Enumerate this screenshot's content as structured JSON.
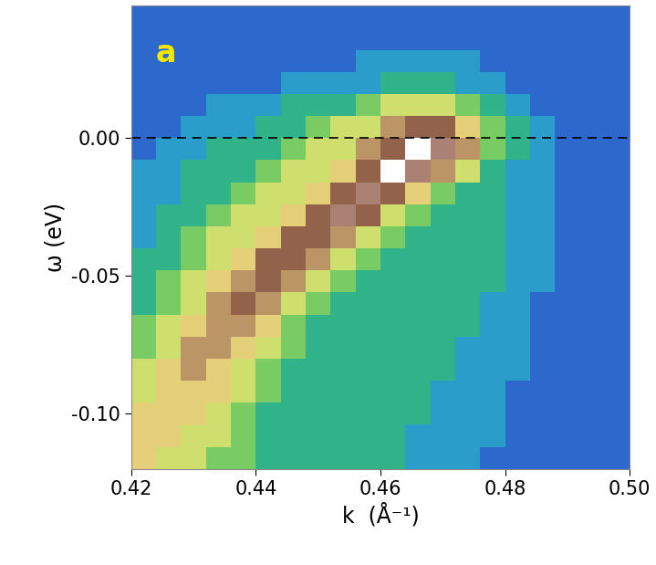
{
  "chart_data": {
    "type": "heatmap",
    "x_label": "k  (Å⁻¹)",
    "y_label": "ω (eV)",
    "annotations": [
      {
        "text": "a"
      }
    ],
    "hline": 0,
    "xlim": [
      0.42,
      0.5
    ],
    "ylim": [
      -0.12,
      0.048
    ],
    "xticks": [
      {
        "value": 0.42,
        "label": "0.42"
      },
      {
        "value": 0.44,
        "label": "0.44"
      },
      {
        "value": 0.46,
        "label": "0.46"
      },
      {
        "value": 0.48,
        "label": "0.48"
      },
      {
        "value": 0.5,
        "label": "0.50"
      }
    ],
    "yticks": [
      {
        "value": -0.1,
        "label": "-0.10"
      },
      {
        "value": -0.05,
        "label": "-0.05"
      },
      {
        "value": 0.0,
        "label": "0.00"
      }
    ],
    "x_edges": [
      0.42,
      0.424,
      0.428,
      0.432,
      0.436,
      0.44,
      0.444,
      0.448,
      0.452,
      0.456,
      0.46,
      0.464,
      0.468,
      0.472,
      0.476,
      0.48,
      0.484,
      0.488,
      0.492,
      0.496,
      0.5
    ],
    "y_edges": [
      -0.12,
      -0.112,
      -0.104,
      -0.096,
      -0.088,
      -0.08,
      -0.072,
      -0.064,
      -0.056,
      -0.048,
      -0.04,
      -0.032,
      -0.024,
      -0.016,
      -0.008,
      0.0,
      0.008,
      0.016,
      0.024,
      0.032,
      0.04,
      0.048
    ],
    "zlim": [
      0,
      10
    ],
    "cells": [
      [
        6,
        5,
        5,
        4,
        4,
        3,
        3,
        3,
        3,
        3,
        3,
        2,
        2,
        2,
        1,
        1,
        1,
        1,
        1,
        1
      ],
      [
        6,
        6,
        5,
        5,
        4,
        3,
        3,
        3,
        3,
        3,
        3,
        2,
        2,
        2,
        2,
        1,
        1,
        1,
        1,
        1
      ],
      [
        6,
        6,
        6,
        5,
        4,
        3,
        3,
        3,
        3,
        3,
        3,
        3,
        2,
        2,
        2,
        1,
        1,
        1,
        1,
        1
      ],
      [
        5,
        6,
        6,
        6,
        5,
        4,
        3,
        3,
        3,
        3,
        3,
        3,
        2,
        2,
        2,
        1,
        1,
        1,
        1,
        1
      ],
      [
        5,
        6,
        7,
        6,
        5,
        4,
        3,
        3,
        3,
        3,
        3,
        3,
        3,
        2,
        2,
        2,
        1,
        1,
        1,
        1
      ],
      [
        4,
        5,
        7,
        7,
        6,
        5,
        4,
        3,
        3,
        3,
        3,
        3,
        3,
        2,
        2,
        2,
        1,
        1,
        1,
        1
      ],
      [
        4,
        5,
        6,
        7,
        7,
        6,
        4,
        3,
        3,
        3,
        3,
        3,
        3,
        3,
        2,
        2,
        1,
        1,
        1,
        1
      ],
      [
        3,
        4,
        5,
        7,
        8,
        7,
        5,
        4,
        3,
        3,
        3,
        3,
        3,
        3,
        2,
        2,
        1,
        1,
        1,
        1
      ],
      [
        3,
        4,
        5,
        6,
        7,
        8,
        7,
        5,
        4,
        3,
        3,
        3,
        3,
        3,
        3,
        2,
        2,
        1,
        1,
        1
      ],
      [
        3,
        3,
        4,
        5,
        6,
        8,
        8,
        7,
        5,
        4,
        3,
        3,
        3,
        3,
        3,
        2,
        2,
        1,
        1,
        1
      ],
      [
        2,
        3,
        4,
        5,
        5,
        6,
        8,
        8,
        7,
        5,
        4,
        3,
        3,
        3,
        3,
        2,
        2,
        1,
        1,
        1
      ],
      [
        2,
        3,
        3,
        4,
        5,
        5,
        6,
        8,
        9,
        8,
        5,
        4,
        3,
        3,
        3,
        2,
        2,
        1,
        1,
        1
      ],
      [
        2,
        2,
        3,
        3,
        4,
        5,
        5,
        6,
        8,
        9,
        8,
        6,
        4,
        3,
        3,
        2,
        2,
        1,
        1,
        1
      ],
      [
        2,
        2,
        3,
        3,
        3,
        4,
        5,
        5,
        6,
        8,
        10,
        9,
        7,
        5,
        3,
        2,
        2,
        1,
        1,
        1
      ],
      [
        1,
        2,
        2,
        3,
        3,
        3,
        4,
        5,
        5,
        7,
        8,
        10,
        9,
        7,
        4,
        3,
        2,
        1,
        1,
        1
      ],
      [
        1,
        1,
        2,
        2,
        2,
        3,
        3,
        4,
        5,
        5,
        7,
        8,
        8,
        6,
        4,
        3,
        2,
        1,
        1,
        1
      ],
      [
        1,
        1,
        1,
        2,
        2,
        2,
        3,
        3,
        3,
        4,
        5,
        5,
        5,
        4,
        3,
        2,
        1,
        1,
        1,
        1
      ],
      [
        1,
        1,
        1,
        1,
        1,
        1,
        2,
        2,
        2,
        2,
        3,
        3,
        3,
        2,
        2,
        1,
        1,
        1,
        1,
        1
      ],
      [
        1,
        1,
        1,
        1,
        1,
        1,
        1,
        1,
        1,
        2,
        2,
        2,
        2,
        2,
        1,
        1,
        1,
        1,
        1,
        1
      ],
      [
        1,
        1,
        1,
        1,
        1,
        1,
        1,
        1,
        1,
        1,
        1,
        1,
        1,
        1,
        1,
        1,
        1,
        1,
        1,
        1
      ],
      [
        1,
        1,
        1,
        1,
        1,
        1,
        1,
        1,
        1,
        1,
        1,
        1,
        1,
        1,
        1,
        1,
        1,
        1,
        1,
        1
      ]
    ]
  }
}
